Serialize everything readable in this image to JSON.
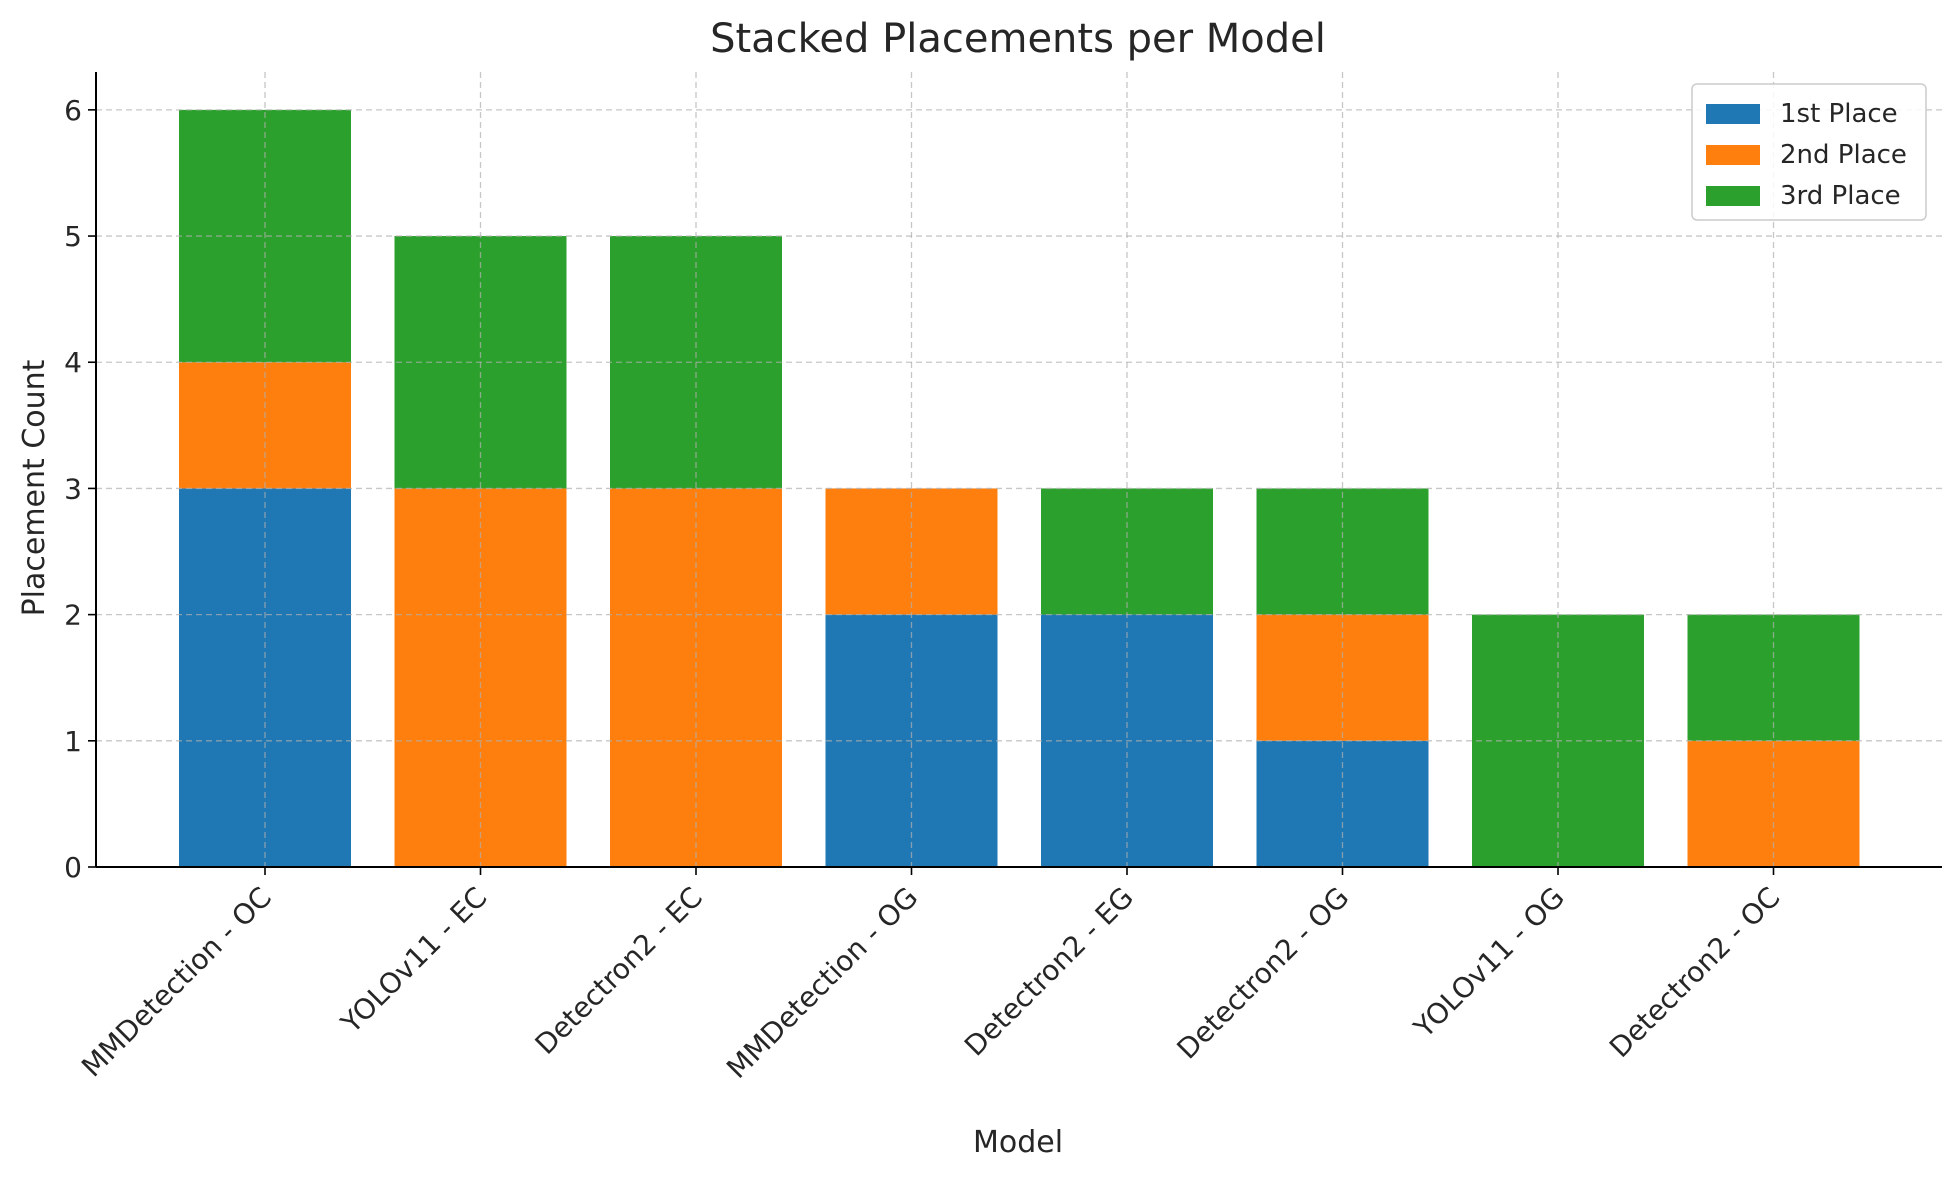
{
  "chart_data": {
    "type": "bar",
    "stacked": true,
    "title": "Stacked Placements per Model",
    "xlabel": "Model",
    "ylabel": "Placement Count",
    "categories": [
      "MMDetection - OC",
      "YOLOv11 - EC",
      "Detectron2 - EC",
      "MMDetection - OG",
      "Detectron2 - EG",
      "Detectron2 - OG",
      "YOLOv11 - OG",
      "Detectron2 - OC"
    ],
    "series": [
      {
        "name": "1st Place",
        "color": "#1f77b4",
        "values": [
          3,
          0,
          0,
          2,
          2,
          1,
          0,
          0
        ]
      },
      {
        "name": "2nd Place",
        "color": "#ff7f0e",
        "values": [
          1,
          3,
          3,
          1,
          0,
          1,
          0,
          1
        ]
      },
      {
        "name": "3rd Place",
        "color": "#2ca02c",
        "values": [
          2,
          2,
          2,
          0,
          1,
          1,
          2,
          1
        ]
      }
    ],
    "ylim": [
      0,
      6.3
    ],
    "yticks": [
      0,
      1,
      2,
      3,
      4,
      5,
      6
    ],
    "grid": true,
    "legend_position": "top-right"
  }
}
